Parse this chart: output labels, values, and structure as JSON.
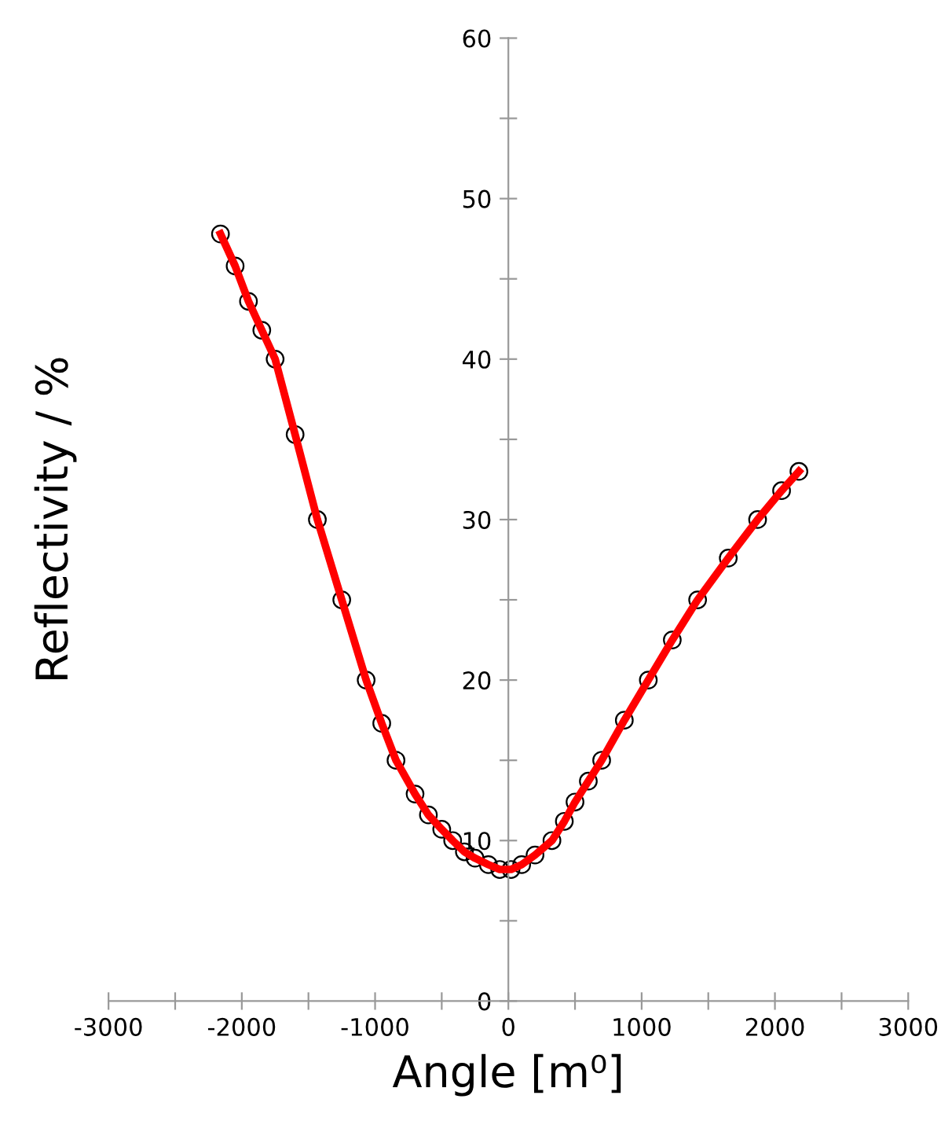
{
  "chart_data": {
    "type": "scatter",
    "xlabel": "Angle [m⁰]",
    "ylabel": "Reflectivity / %",
    "x": [
      -2160,
      -2050,
      -1950,
      -1850,
      -1750,
      -1600,
      -1433,
      -1250,
      -1067,
      -950,
      -843,
      -700,
      -600,
      -500,
      -418,
      -330,
      -250,
      -150,
      -65,
      20,
      100,
      200,
      327,
      420,
      500,
      600,
      700,
      870,
      1050,
      1230,
      1420,
      1650,
      1870,
      2050,
      2180
    ],
    "series": [
      {
        "color": "#000000",
        "marker": "circle",
        "values": [
          47.8,
          45.8,
          43.6,
          41.8,
          40,
          35.3,
          30,
          25,
          20,
          17.3,
          15,
          12.9,
          11.6,
          10.7,
          10,
          9.3,
          8.9,
          8.5,
          8.2,
          8.2,
          8.5,
          9.1,
          10,
          11.2,
          12.4,
          13.7,
          15,
          17.5,
          20,
          22.5,
          25,
          27.6,
          30,
          31.8,
          33
        ]
      },
      {
        "type": "line",
        "color": "#ff0000",
        "marker": "none",
        "line_style": "solid",
        "values": [
          47.8,
          45.8,
          43.6,
          41.8,
          40,
          35.3,
          30,
          25,
          20,
          17.3,
          15,
          12.9,
          11.6,
          10.7,
          10,
          9.3,
          8.9,
          8.5,
          8.2,
          8.2,
          8.5,
          9.1,
          10,
          11.2,
          12.4,
          13.7,
          15,
          17.5,
          20,
          22.5,
          25,
          27.6,
          30,
          31.8,
          33
        ]
      }
    ],
    "xlim": [
      -3000,
      3000
    ],
    "xticks": [
      -3000,
      {
        "value": -2500,
        "label": null
      },
      -2000,
      {
        "value": -1500,
        "label": null
      },
      -1000,
      {
        "value": -500,
        "label": null
      },
      0,
      {
        "value": 500,
        "label": null
      },
      1000,
      {
        "value": 1500,
        "label": null
      },
      2000,
      {
        "value": 2500,
        "label": null
      },
      3000
    ],
    "ylim": [
      0,
      60
    ],
    "yticks": [
      0,
      {
        "value": 5,
        "label": null
      },
      10,
      {
        "value": 15,
        "label": null
      },
      20,
      {
        "value": 25,
        "label": null
      },
      30,
      {
        "value": 35,
        "label": null
      },
      40,
      {
        "value": 45,
        "label": null
      },
      50,
      {
        "value": 55,
        "label": null
      },
      60
    ],
    "grid": false,
    "legend": false
  }
}
